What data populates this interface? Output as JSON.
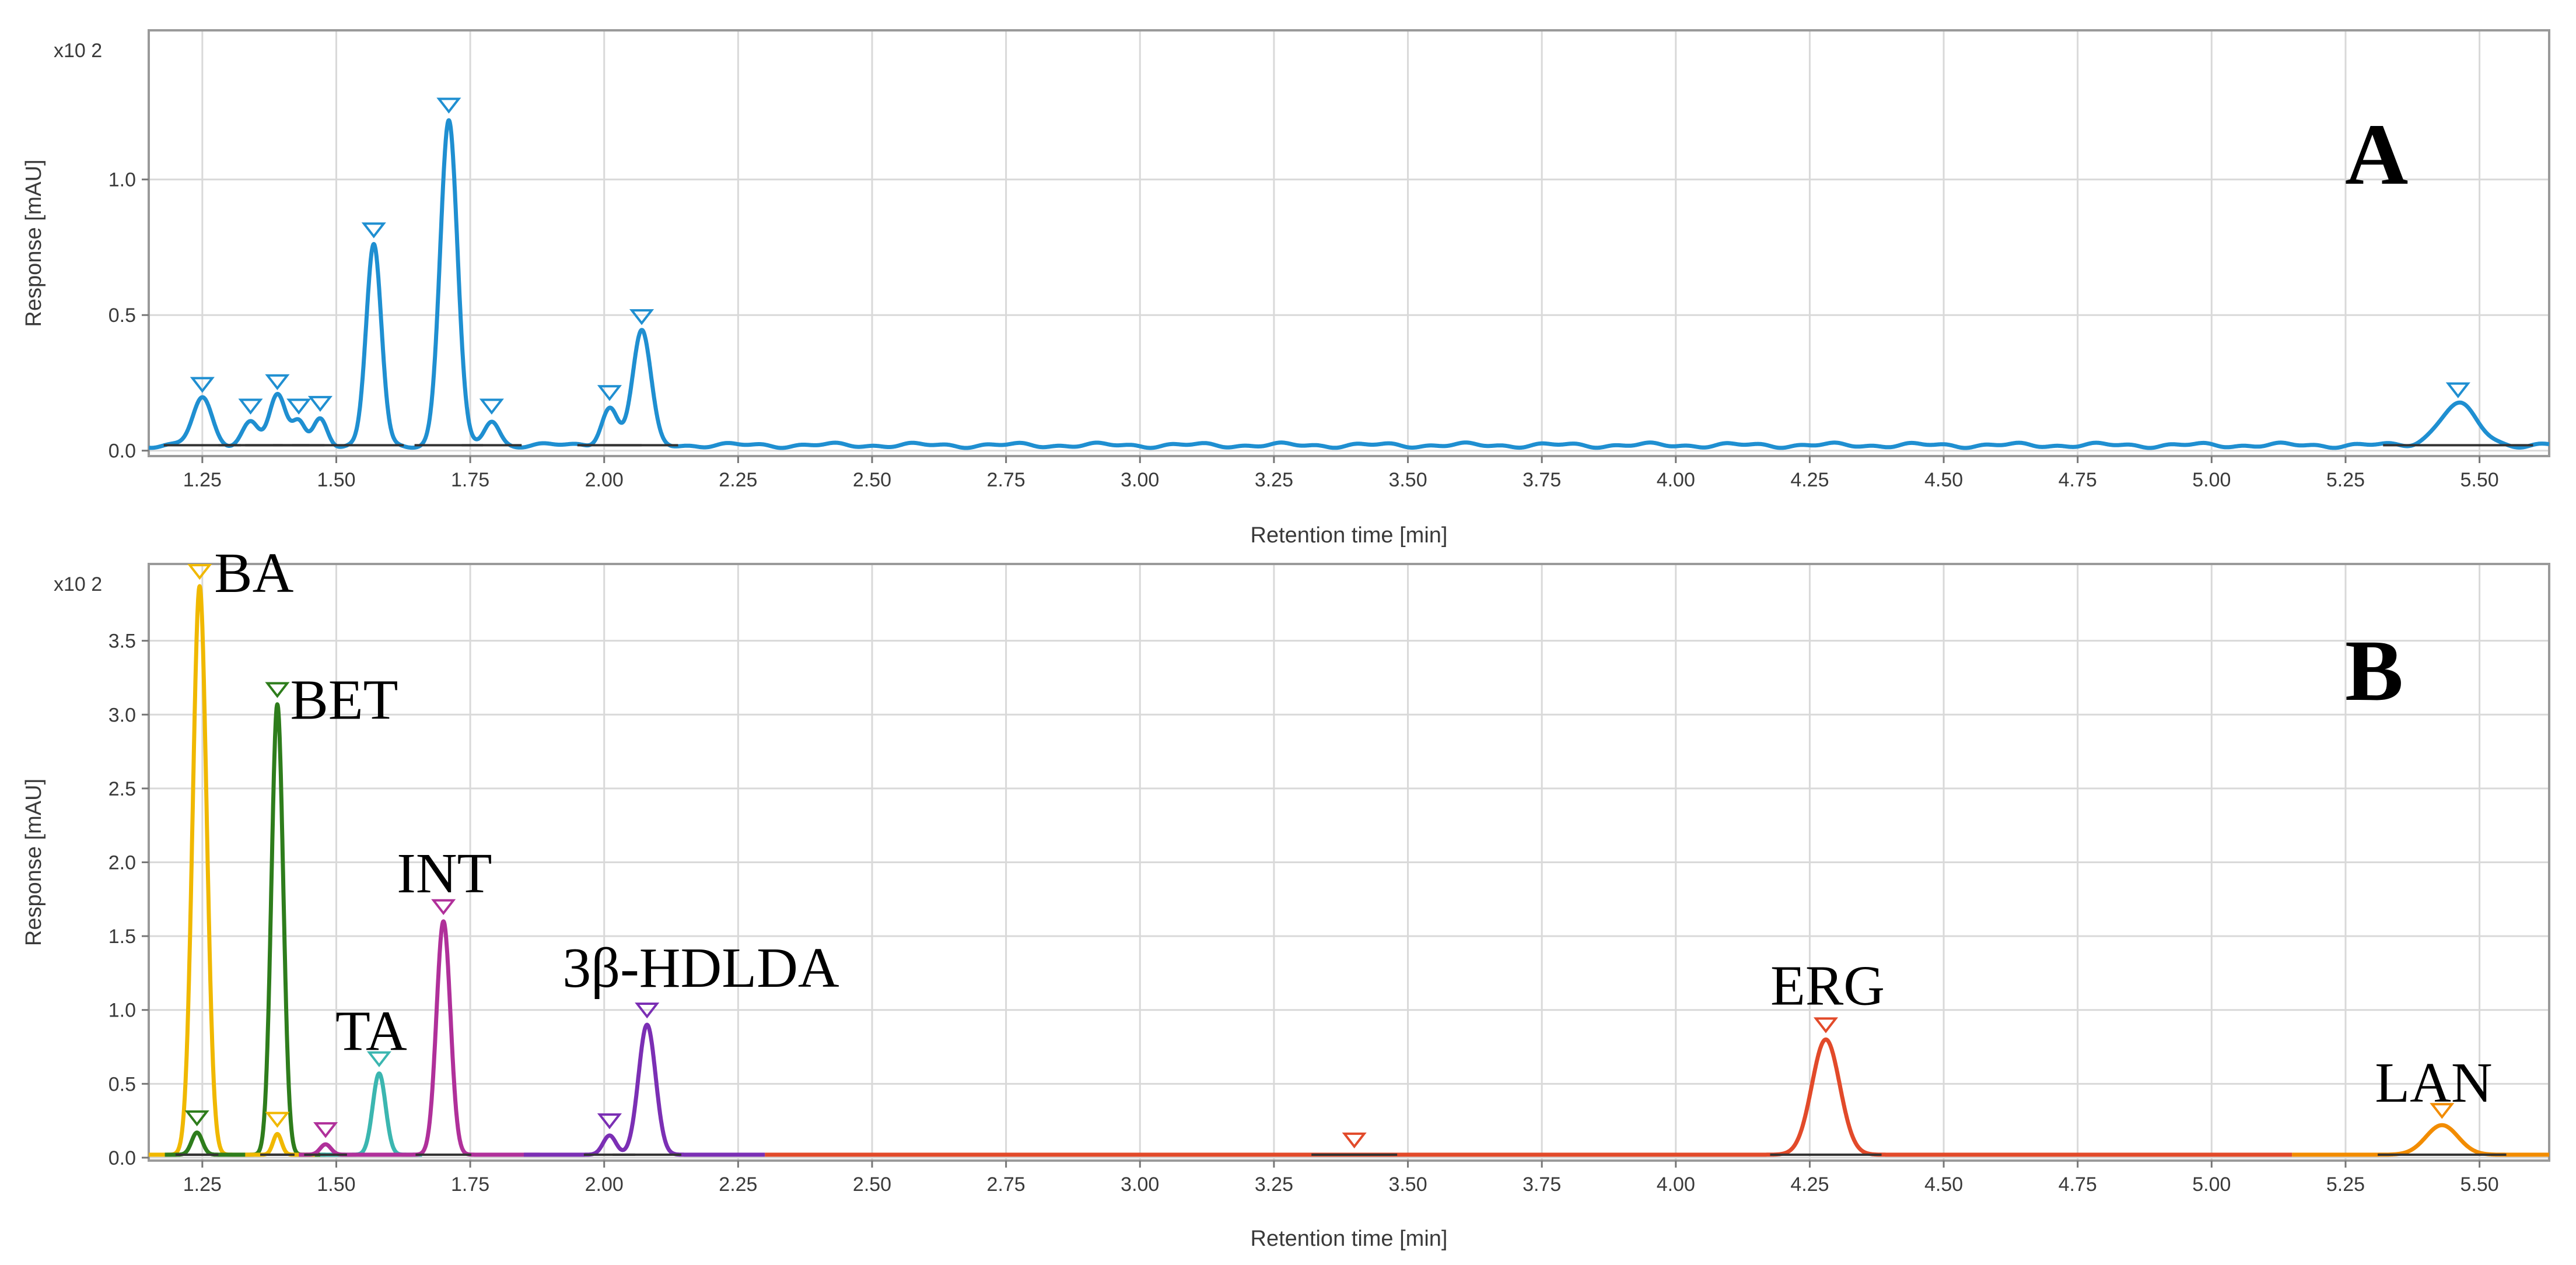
{
  "chart_data": [
    {
      "panel": "A",
      "type": "line",
      "multiplier_label": "x10 2",
      "xlabel": "Retention time [min]",
      "ylabel": "Response [mAU]",
      "xlim": [
        1.15,
        5.63
      ],
      "ylim": [
        -0.02,
        1.55
      ],
      "xticks": [
        "1.25",
        "1.50",
        "1.75",
        "2.00",
        "2.25",
        "2.50",
        "2.75",
        "3.00",
        "3.25",
        "3.50",
        "3.75",
        "4.00",
        "4.25",
        "4.50",
        "4.75",
        "5.00",
        "5.25",
        "5.50"
      ],
      "xtick_values": [
        1.25,
        1.5,
        1.75,
        2.0,
        2.25,
        2.5,
        2.75,
        3.0,
        3.25,
        3.5,
        3.75,
        4.0,
        4.25,
        4.5,
        4.75,
        5.0,
        5.25,
        5.5
      ],
      "yticks": [
        "0.0",
        "0.5",
        "1.0"
      ],
      "ytick_values": [
        0.0,
        0.5,
        1.0
      ],
      "grid": true,
      "baseline": 0.02,
      "series": [
        {
          "color": "#1f8fd1",
          "peaks": [
            {
              "rt": 1.25,
              "height": 0.17,
              "width": 0.018,
              "marker": true
            },
            {
              "rt": 1.34,
              "height": 0.09,
              "width": 0.015,
              "marker": true
            },
            {
              "rt": 1.39,
              "height": 0.18,
              "width": 0.015,
              "marker": true
            },
            {
              "rt": 1.43,
              "height": 0.09,
              "width": 0.012,
              "marker": true
            },
            {
              "rt": 1.47,
              "height": 0.1,
              "width": 0.013,
              "marker": true
            },
            {
              "rt": 1.57,
              "height": 0.74,
              "width": 0.014,
              "marker": true
            },
            {
              "rt": 1.71,
              "height": 1.2,
              "width": 0.016,
              "marker": true
            },
            {
              "rt": 1.79,
              "height": 0.09,
              "width": 0.014,
              "marker": true
            },
            {
              "rt": 2.01,
              "height": 0.14,
              "width": 0.015,
              "marker": true
            },
            {
              "rt": 2.07,
              "height": 0.42,
              "width": 0.017,
              "marker": true
            },
            {
              "rt": 5.46,
              "height": 0.15,
              "width": 0.035,
              "marker": true
            }
          ]
        }
      ]
    },
    {
      "panel": "B",
      "type": "line",
      "multiplier_label": "x10 2",
      "xlabel": "Retention time [min]",
      "ylabel": "Response [mAU]",
      "xlim": [
        1.15,
        5.63
      ],
      "ylim": [
        -0.02,
        4.02
      ],
      "xticks": [
        "1.25",
        "1.50",
        "1.75",
        "2.00",
        "2.25",
        "2.50",
        "2.75",
        "3.00",
        "3.25",
        "3.50",
        "3.75",
        "4.00",
        "4.25",
        "4.50",
        "4.75",
        "5.00",
        "5.25",
        "5.50"
      ],
      "xtick_values": [
        1.25,
        1.5,
        1.75,
        2.0,
        2.25,
        2.5,
        2.75,
        3.0,
        3.25,
        3.5,
        3.75,
        4.0,
        4.25,
        4.5,
        4.75,
        5.0,
        5.25,
        5.5
      ],
      "yticks": [
        "0.0",
        "0.5",
        "1.0",
        "1.5",
        "2.0",
        "2.5",
        "3.0",
        "3.5"
      ],
      "ytick_values": [
        0.0,
        0.5,
        1.0,
        1.5,
        2.0,
        2.5,
        3.0,
        3.5
      ],
      "grid": true,
      "baseline": 0.02,
      "series": [
        {
          "color": "#f0b800",
          "range": [
            1.15,
            1.33
          ],
          "peaks": [
            {
              "rt": 1.245,
              "height": 3.85,
              "width": 0.013,
              "marker": true
            }
          ]
        },
        {
          "color": "#2e7d1c",
          "range": [
            1.18,
            1.48
          ],
          "peaks": [
            {
              "rt": 1.24,
              "height": 0.15,
              "width": 0.01,
              "marker": true
            },
            {
              "rt": 1.39,
              "height": 3.05,
              "width": 0.011,
              "marker": true
            }
          ]
        },
        {
          "color": "#f0b800",
          "range": [
            1.33,
            1.46
          ],
          "peaks": [
            {
              "rt": 1.39,
              "height": 0.14,
              "width": 0.008,
              "marker": true
            }
          ]
        },
        {
          "color": "#3bb6b0",
          "range": [
            1.47,
            1.66
          ],
          "peaks": [
            {
              "rt": 1.58,
              "height": 0.55,
              "width": 0.012,
              "marker": true
            }
          ]
        },
        {
          "color": "#b0309a",
          "range": [
            1.43,
            1.88
          ],
          "peaks": [
            {
              "rt": 1.48,
              "height": 0.07,
              "width": 0.01,
              "marker": true
            },
            {
              "rt": 1.7,
              "height": 1.58,
              "width": 0.013,
              "marker": true
            }
          ]
        },
        {
          "color": "#7b2fb4",
          "range": [
            1.85,
            2.3
          ],
          "peaks": [
            {
              "rt": 2.01,
              "height": 0.13,
              "width": 0.012,
              "marker": true
            },
            {
              "rt": 2.08,
              "height": 0.88,
              "width": 0.016,
              "marker": true
            }
          ]
        },
        {
          "color": "#e24a2a",
          "range": [
            2.3,
            5.15
          ],
          "peaks": [
            {
              "rt": 3.4,
              "height": 0.0,
              "width": 0.02,
              "marker": true
            },
            {
              "rt": 4.28,
              "height": 0.78,
              "width": 0.026,
              "marker": true
            }
          ]
        },
        {
          "color": "#f28c00",
          "range": [
            5.15,
            5.63
          ],
          "peaks": [
            {
              "rt": 5.43,
              "height": 0.2,
              "width": 0.03,
              "marker": true
            }
          ]
        }
      ],
      "peak_labels": [
        {
          "text": "BA",
          "rt": 1.245,
          "y": 3.85
        },
        {
          "text": "BET",
          "rt": 1.39,
          "y": 3.05
        },
        {
          "text": "TA",
          "rt": 1.58,
          "y": 0.55
        },
        {
          "text": "INT",
          "rt": 1.7,
          "y": 1.58
        },
        {
          "text": "3β-HDLDA",
          "rt": 2.08,
          "y": 0.88
        },
        {
          "text": "ERG",
          "rt": 4.28,
          "y": 0.78
        },
        {
          "text": "LAN",
          "rt": 5.43,
          "y": 0.2
        }
      ]
    }
  ],
  "panel_labels": [
    "A",
    "B"
  ]
}
